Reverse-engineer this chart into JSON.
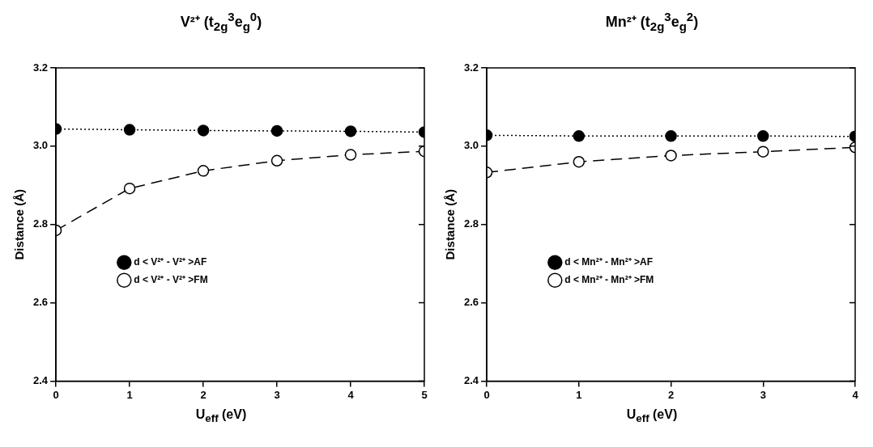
{
  "chart_data": [
    {
      "type": "line",
      "title": "V²⁺  (t$_{2g}$$^{3}$e$_{g}$$^{0}$)",
      "xlabel": "U$_{eff}$ (eV)",
      "ylabel": "Distance (Å)",
      "x": [
        0,
        1,
        2,
        3,
        4,
        5
      ],
      "series": [
        {
          "name": "d < V²⁺ - V²⁺ >AF",
          "color": "#000000",
          "line_style": "dotted",
          "values": [
            3.044,
            3.042,
            3.04,
            3.039,
            3.038,
            3.036
          ]
        },
        {
          "name": "d < V²⁺ - V²⁺ >FM",
          "color": "#000000",
          "line_style": "dashed",
          "values": [
            2.785,
            2.892,
            2.937,
            2.963,
            2.978,
            2.987
          ]
        }
      ],
      "xlim": [
        0,
        5
      ],
      "xticks": [
        0,
        1,
        2,
        3,
        4,
        5
      ],
      "ylim": [
        2.4,
        3.2
      ],
      "yticks": [
        2.4,
        2.6,
        2.8,
        {
          "value": 3,
          "label": "3.0"
        },
        3.2
      ],
      "grid": false,
      "legend": "center",
      "marker": "circle"
    },
    {
      "type": "line",
      "title": "Mn²⁺   (t$_{2g}$$^{3}$e$_{g}$$^{2}$)",
      "xlabel": "U$_{eff}$ (eV)",
      "ylabel": "Distance (Å)",
      "x": [
        0,
        1,
        2,
        3,
        4
      ],
      "series": [
        {
          "name": "d < Mn²⁺ - Mn²⁺ >AF",
          "color": "#000000",
          "line_style": "dotted",
          "values": [
            3.028,
            3.026,
            3.026,
            3.026,
            3.025
          ]
        },
        {
          "name": "d < Mn²⁺ - Mn²⁺ >FM",
          "color": "#000000",
          "line_style": "dashed",
          "values": [
            2.933,
            2.96,
            2.976,
            2.986,
            2.997
          ]
        }
      ],
      "xlim": [
        0,
        4
      ],
      "xticks": [
        0,
        1,
        2,
        3,
        4
      ],
      "ylim": [
        2.4,
        3.2
      ],
      "yticks": [
        2.4,
        2.6,
        2.8,
        {
          "value": 3,
          "label": "3.0"
        },
        3.2
      ],
      "grid": false,
      "legend": "center",
      "marker": "circle"
    }
  ]
}
